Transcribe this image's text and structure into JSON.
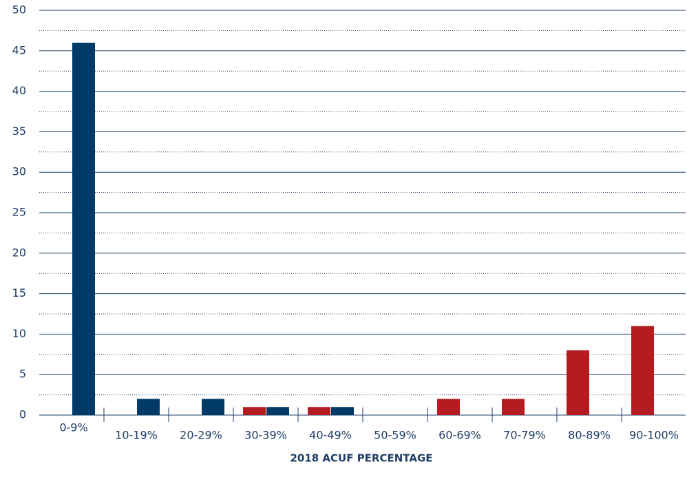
{
  "chart_data": {
    "type": "bar",
    "x_label": "2018 ACUF PERCENTAGE",
    "categories": [
      "0-9%",
      "10-19%",
      "20-29%",
      "30-39%",
      "40-49%",
      "50-59%",
      "60-69%",
      "70-79%",
      "80-89%",
      "90-100%"
    ],
    "series": [
      {
        "color": "#b41c1f",
        "values": [
          0,
          0,
          0,
          1,
          1,
          0,
          2,
          2,
          8,
          11
        ]
      },
      {
        "color": "#003b68",
        "values": [
          46,
          2,
          2,
          1,
          1,
          0,
          0,
          0,
          0,
          0
        ]
      }
    ],
    "ylim": [
      0,
      50
    ],
    "yticks": [
      0,
      5,
      10,
      15,
      20,
      25,
      30,
      35,
      40,
      45,
      50
    ],
    "minor_yticks": [
      2.5,
      7.5,
      12.5,
      17.5,
      22.5,
      27.5,
      32.5,
      37.5,
      42.5,
      47.5
    ],
    "grid": true
  }
}
